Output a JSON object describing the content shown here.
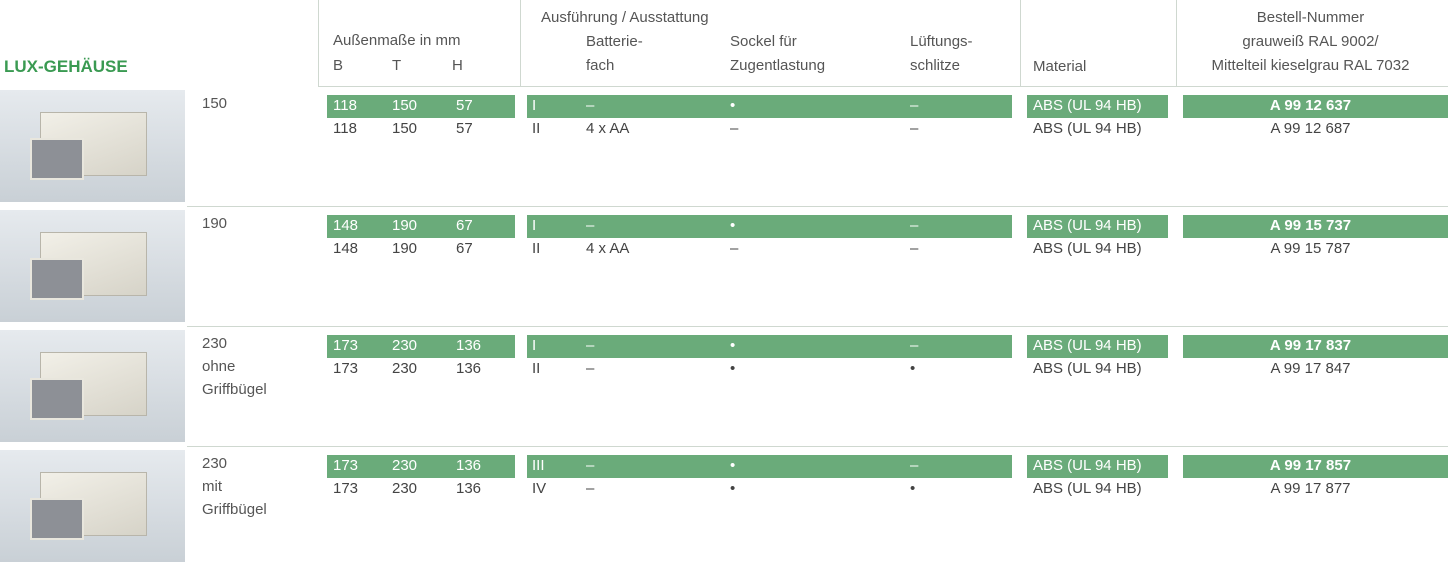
{
  "header": {
    "title": "LUX-GEHÄUSE",
    "dimensions": {
      "title": "Außenmaße in mm",
      "columns": [
        "B",
        "T",
        "H"
      ]
    },
    "execution": {
      "title": "Ausführung / Ausstattung",
      "columns": [
        [
          "Batterie-",
          "fach"
        ],
        [
          "Sockel für",
          "Zugentlastung"
        ],
        [
          "Lüftungs-",
          "schlitze"
        ]
      ]
    },
    "material": "Material",
    "order_number": [
      "Bestell-Nummer",
      "grauweiß RAL 9002/",
      "Mittelteil kieselgrau RAL 7032"
    ]
  },
  "groups": [
    {
      "label": [
        "150"
      ],
      "rows": [
        [
          118,
          150,
          57,
          "I",
          "–",
          "•",
          "–",
          "ABS (UL 94 HB)",
          "A 99 12 637"
        ],
        [
          118,
          150,
          57,
          "II",
          "4 x AA",
          "–",
          "–",
          "ABS (UL 94 HB)",
          "A 99 12 687"
        ]
      ]
    },
    {
      "label": [
        "190"
      ],
      "rows": [
        [
          148,
          190,
          67,
          "I",
          "–",
          "•",
          "–",
          "ABS (UL 94 HB)",
          "A 99 15 737"
        ],
        [
          148,
          190,
          67,
          "II",
          "4 x AA",
          "–",
          "–",
          "ABS (UL 94 HB)",
          "A 99 15 787"
        ]
      ]
    },
    {
      "label": [
        "230",
        "ohne",
        "Griffbügel"
      ],
      "rows": [
        [
          173,
          230,
          136,
          "I",
          "–",
          "•",
          "–",
          "ABS (UL 94 HB)",
          "A 99 17 837"
        ],
        [
          173,
          230,
          136,
          "II",
          "–",
          "•",
          "•",
          "ABS (UL 94 HB)",
          "A 99 17 847"
        ]
      ]
    },
    {
      "label": [
        "230",
        "mit",
        "Griffbügel"
      ],
      "rows": [
        [
          173,
          230,
          136,
          "III",
          "–",
          "•",
          "–",
          "ABS (UL 94 HB)",
          "A 99 17 857"
        ],
        [
          173,
          230,
          136,
          "IV",
          "–",
          "•",
          "•",
          "ABS (UL 94 HB)",
          "A 99 17 877"
        ]
      ]
    }
  ]
}
